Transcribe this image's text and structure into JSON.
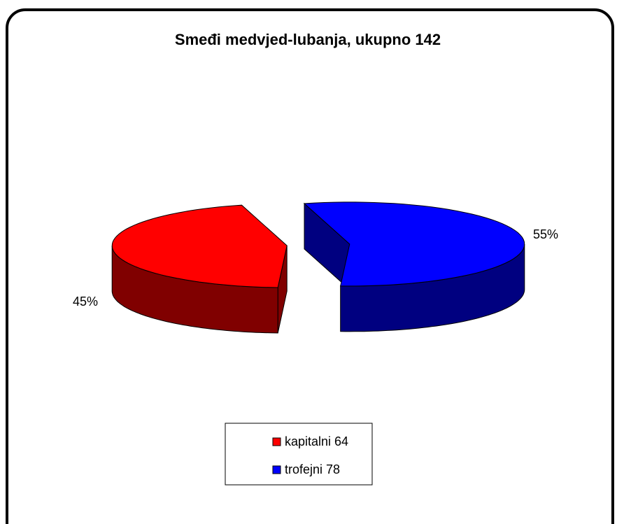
{
  "chart_data": {
    "type": "pie",
    "title": "Smeđi medvjed-lubanja, ukupno 142",
    "categories": [
      "kapitalni 64",
      "trofejni 78"
    ],
    "values": [
      45,
      55
    ],
    "value_labels": [
      "45%",
      "55%"
    ],
    "colors": [
      "#ff0000",
      "#0000ff"
    ],
    "legend": "bottom"
  }
}
